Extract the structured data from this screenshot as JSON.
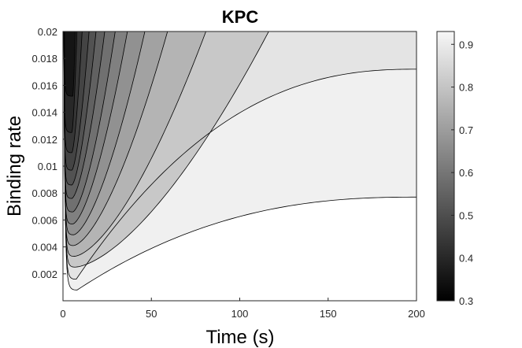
{
  "chart_data": {
    "type": "contour",
    "title": "KPC",
    "xlabel": "Time (s)",
    "ylabel": "Binding rate",
    "xlim": [
      0,
      200
    ],
    "ylim": [
      0,
      0.02
    ],
    "x_ticks": [
      0,
      50,
      100,
      150,
      200
    ],
    "x_tick_labels": [
      "0",
      "50",
      "100",
      "150",
      "200"
    ],
    "y_ticks": [
      0.002,
      0.004,
      0.006,
      0.008,
      0.01,
      0.012,
      0.014,
      0.016,
      0.018,
      0.02
    ],
    "y_tick_labels": [
      "0.002",
      "0.004",
      "0.006",
      "0.008",
      "0.01",
      "0.012",
      "0.014",
      "0.016",
      "0.018",
      "0.02"
    ],
    "colorbar": {
      "range": [
        0.3,
        0.93
      ],
      "ticks": [
        0.3,
        0.4,
        0.5,
        0.6,
        0.7,
        0.8,
        0.9
      ],
      "tick_labels": [
        "0.3",
        "0.4",
        "0.5",
        "0.6",
        "0.7",
        "0.8",
        "0.9"
      ],
      "colormap": "gray"
    },
    "contour_levels": [
      {
        "level": 1,
        "y_min": 0.0008,
        "t_min": 8,
        "exit_t": null,
        "plateau": 0.0077
      },
      {
        "level": 2,
        "y_min": 0.0016,
        "t_min": 7.5,
        "exit_t": null,
        "plateau": 0.0172
      },
      {
        "level": 3,
        "y_min": 0.0025,
        "t_min": 7,
        "exit_t": 118,
        "plateau": null
      },
      {
        "level": 4,
        "y_min": 0.0033,
        "t_min": 6.5,
        "exit_t": 82,
        "plateau": null
      },
      {
        "level": 5,
        "y_min": 0.0041,
        "t_min": 6,
        "exit_t": 60,
        "plateau": null
      },
      {
        "level": 6,
        "y_min": 0.0049,
        "t_min": 6,
        "exit_t": 47,
        "plateau": null
      },
      {
        "level": 7,
        "y_min": 0.0057,
        "t_min": 5.5,
        "exit_t": 37,
        "plateau": null
      },
      {
        "level": 8,
        "y_min": 0.0066,
        "t_min": 5.5,
        "exit_t": 30,
        "plateau": null
      },
      {
        "level": 9,
        "y_min": 0.0076,
        "t_min": 5,
        "exit_t": 24,
        "plateau": null
      },
      {
        "level": 10,
        "y_min": 0.0086,
        "t_min": 5,
        "exit_t": 19,
        "plateau": null
      },
      {
        "level": 11,
        "y_min": 0.0097,
        "t_min": 5,
        "exit_t": 15,
        "plateau": null
      },
      {
        "level": 12,
        "y_min": 0.011,
        "t_min": 5,
        "exit_t": 11,
        "plateau": null
      },
      {
        "level": 13,
        "y_min": 0.0125,
        "t_min": 5,
        "exit_t": 8,
        "plateau": null
      },
      {
        "level": 14,
        "y_min": 0.0152,
        "t_min": 5.5,
        "exit_t": 7,
        "plateau": null
      }
    ],
    "band_colors": [
      "#ffffff",
      "#f0f0f0",
      "#e4e4e4",
      "#c8c8c8",
      "#b4b4b4",
      "#a2a2a2",
      "#919191",
      "#808080",
      "#707070",
      "#616161",
      "#525252",
      "#444444",
      "#363636",
      "#282828",
      "#151515"
    ]
  }
}
